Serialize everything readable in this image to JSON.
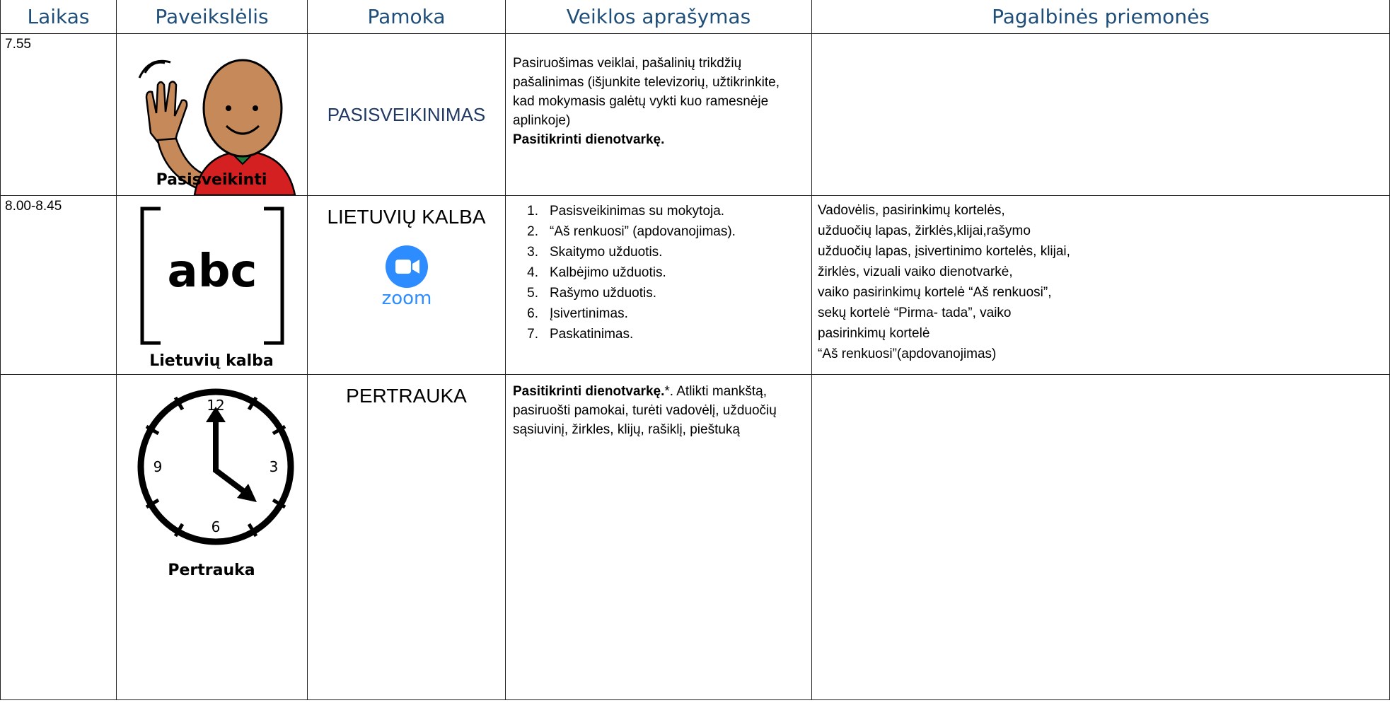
{
  "header": [
    "Laikas",
    "Paveikslėlis",
    "Pamoka",
    "Veiklos aprašymas",
    "Pagalbinės priemonės"
  ],
  "rows": [
    {
      "time": "7.55",
      "picture": {
        "caption": "Pasisveikinti"
      },
      "lesson": "PASISVEIKINIMAS",
      "description": {
        "text": "Pasiruošimas veiklai, pašalinių trikdžių pašalinimas (išjunkite televizorių, užtikrinkite, kad mokymasis galėtų vykti kuo ramesnėje aplinkoje)",
        "bold": "Pasitikrinti dienotvarkę."
      }
    },
    {
      "time": "8.00-8.45",
      "picture": {
        "caption": "Lietuvių kalba",
        "symbol": "abc"
      },
      "lesson": "LIETUVIŲ KALBA",
      "lesson_icon": "zoom",
      "steps": [
        {
          "number": "1.",
          "text": "Pasisveikinimas su mokytoja."
        },
        {
          "number": "2.",
          "text": "“Aš renkuosi” (apdovanojimas)."
        },
        {
          "number": "3.",
          "text": "Skaitymo užduotis."
        },
        {
          "number": "4.",
          "text": "Kalbėjimo užduotis."
        },
        {
          "number": "5.",
          "text": "Rašymo užduotis."
        },
        {
          "number": "6.",
          "text": "Įsivertinimas."
        },
        {
          "number": "7.",
          "text": "Paskatinimas."
        }
      ],
      "resources": [
        "Vadovėlis, pasirinkimų kortelės,",
        "užduočių lapas, žirklės,klijai,rašymo",
        "užduočių lapas, įsivertinimo kortelės, klijai,",
        "žirklės, vizuali vaiko dienotvarkė,",
        "vaiko pasirinkimų kortelė “Aš renkuosi”,",
        "sekų kortelė “Pirma- tada”,  vaiko",
        "pasirinkimų kortelė",
        "“Aš renkuosi”(apdovanojimas)"
      ]
    },
    {
      "picture": {
        "caption": "Pertrauka",
        "clock": [
          "12",
          "3",
          "6",
          "9"
        ]
      },
      "lesson": "PERTRAUKA",
      "description": {
        "bold": "Pasitikrinti dienotvarkę.",
        "text": "*. Atlikti mankštą, pasiruošti pamokai, turėti vadovėlį, užduočių sąsiuvinį, žirkles, klijų, rašiklį, pieštuką"
      }
    }
  ]
}
